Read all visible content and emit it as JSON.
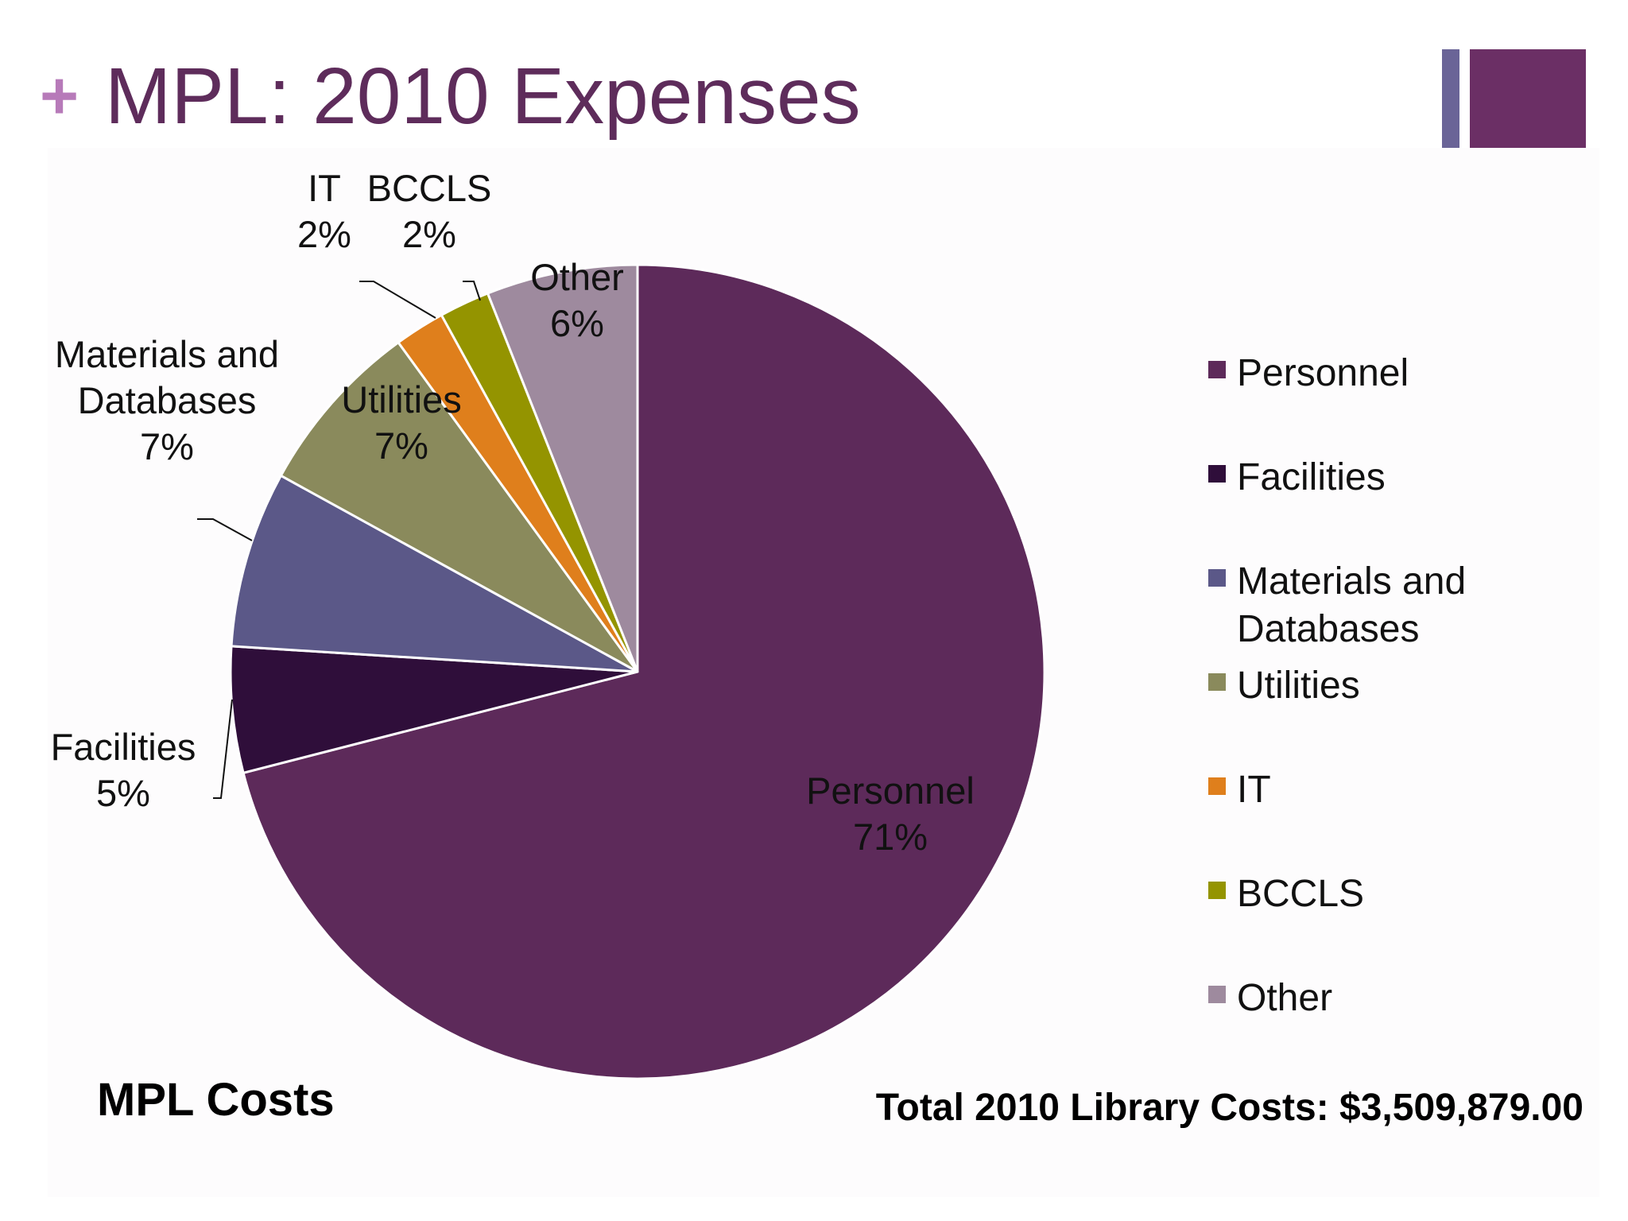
{
  "slide": {
    "plus_symbol": "+",
    "title": "MPL: 2010 Expenses",
    "footer_left": "MPL Costs",
    "footer_right": "Total 2010 Library Costs: $3,509,879.00"
  },
  "chart_data": {
    "type": "pie",
    "title": "",
    "legend_position": "right",
    "series": [
      {
        "name": "Personnel",
        "label_lines": [
          "Personnel"
        ],
        "percent_label": "71%",
        "value": 71,
        "color": "#5d2a5a"
      },
      {
        "name": "Facilities",
        "label_lines": [
          "Facilities"
        ],
        "percent_label": "5%",
        "value": 5,
        "color": "#2f0e3a"
      },
      {
        "name": "Materials and Databases",
        "label_lines": [
          "Materials and",
          "Databases"
        ],
        "percent_label": "7%",
        "value": 7,
        "color": "#5b5888"
      },
      {
        "name": "Utilities",
        "label_lines": [
          "Utilities"
        ],
        "percent_label": "7%",
        "value": 7,
        "color": "#8a8a5c"
      },
      {
        "name": "IT",
        "label_lines": [
          "IT"
        ],
        "percent_label": "2%",
        "value": 2,
        "color": "#df7f1c"
      },
      {
        "name": "BCCLS",
        "label_lines": [
          "BCCLS"
        ],
        "percent_label": "2%",
        "value": 2,
        "color": "#949400"
      },
      {
        "name": "Other",
        "label_lines": [
          "Other"
        ],
        "percent_label": "6%",
        "value": 6,
        "color": "#9e8a9e"
      }
    ],
    "legend": [
      {
        "lines": [
          "Personnel"
        ],
        "color": "#5d2a5a"
      },
      {
        "lines": [
          "Facilities"
        ],
        "color": "#2f0e3a"
      },
      {
        "lines": [
          "Materials and",
          "Databases"
        ],
        "color": "#5b5888"
      },
      {
        "lines": [
          "Utilities"
        ],
        "color": "#8a8a5c"
      },
      {
        "lines": [
          "IT"
        ],
        "color": "#df7f1c"
      },
      {
        "lines": [
          "BCCLS"
        ],
        "color": "#949400"
      },
      {
        "lines": [
          "Other"
        ],
        "color": "#9e8a9e"
      }
    ]
  }
}
